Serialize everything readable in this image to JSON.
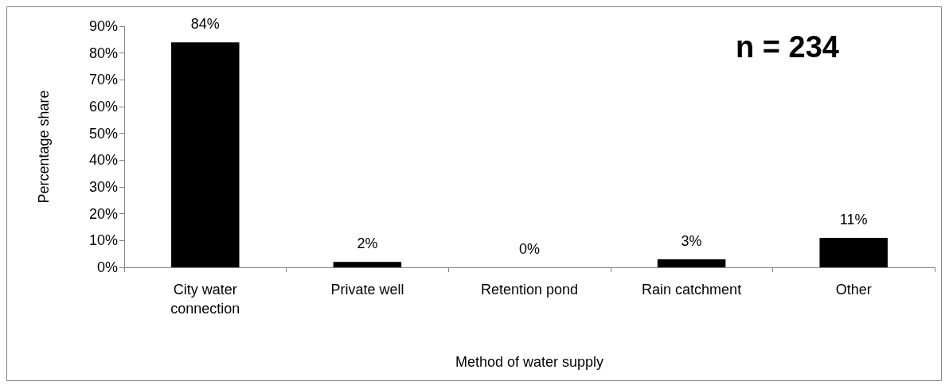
{
  "chart_data": {
    "type": "bar",
    "xlabel": "Method of water supply",
    "ylabel": "Percentage share",
    "categories": [
      "City water\nconnection",
      "Private well",
      "Retention pond",
      "Rain catchment",
      "Other"
    ],
    "values": [
      84,
      2,
      0,
      3,
      11
    ],
    "value_labels": [
      "84%",
      "2%",
      "0%",
      "3%",
      "11%"
    ],
    "color": "#000000",
    "ylim": [
      0,
      90
    ],
    "yticks": [
      {
        "value": 0,
        "label": "0%"
      },
      {
        "value": 10,
        "label": "10%"
      },
      {
        "value": 20,
        "label": "20%"
      },
      {
        "value": 30,
        "label": "30%"
      },
      {
        "value": 40,
        "label": "40%"
      },
      {
        "value": 50,
        "label": "50%"
      },
      {
        "value": 60,
        "label": "60%"
      },
      {
        "value": 70,
        "label": "70%"
      },
      {
        "value": 80,
        "label": "80%"
      },
      {
        "value": 90,
        "label": "90%"
      }
    ],
    "annotations": [
      "n = 234"
    ],
    "grid": false
  }
}
